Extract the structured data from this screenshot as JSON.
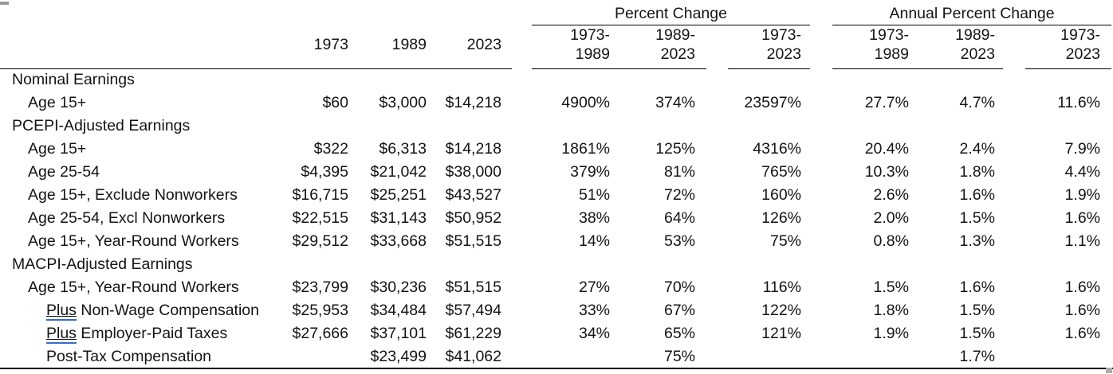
{
  "accents": {
    "rule_color": "#000000",
    "plus_underline_color": "#3a6bc9",
    "text_color": "#141414",
    "background_color": "#ffffff"
  },
  "chart_data": {
    "type": "table",
    "group_headers": [
      "Percent Change",
      "Annual Percent Change"
    ],
    "year_columns": [
      "1973",
      "1989",
      "2023"
    ],
    "change_columns": [
      {
        "line1": "1973-",
        "line2": "1989"
      },
      {
        "line1": "1989-",
        "line2": "2023"
      },
      {
        "line1": "1973-",
        "line2": "2023"
      }
    ],
    "rows": [
      {
        "label": "Nominal Earnings",
        "indent": 0,
        "section": true,
        "values": [
          "",
          "",
          "",
          "",
          "",
          "",
          "",
          "",
          ""
        ]
      },
      {
        "label": "Age 15+",
        "indent": 1,
        "section": false,
        "values": [
          "$60",
          "$3,000",
          "$14,218",
          "4900%",
          "374%",
          "23597%",
          "27.7%",
          "4.7%",
          "11.6%"
        ]
      },
      {
        "label": "PCEPI-Adjusted Earnings",
        "indent": 0,
        "section": true,
        "values": [
          "",
          "",
          "",
          "",
          "",
          "",
          "",
          "",
          ""
        ]
      },
      {
        "label": "Age 15+",
        "indent": 1,
        "section": false,
        "values": [
          "$322",
          "$6,313",
          "$14,218",
          "1861%",
          "125%",
          "4316%",
          "20.4%",
          "2.4%",
          "7.9%"
        ]
      },
      {
        "label": "Age 25-54",
        "indent": 1,
        "section": false,
        "values": [
          "$4,395",
          "$21,042",
          "$38,000",
          "379%",
          "81%",
          "765%",
          "10.3%",
          "1.8%",
          "4.4%"
        ]
      },
      {
        "label": "Age 15+, Exclude Nonworkers",
        "indent": 1,
        "section": false,
        "values": [
          "$16,715",
          "$25,251",
          "$43,527",
          "51%",
          "72%",
          "160%",
          "2.6%",
          "1.6%",
          "1.9%"
        ]
      },
      {
        "label": "Age 25-54, Excl Nonworkers",
        "indent": 1,
        "section": false,
        "values": [
          "$22,515",
          "$31,143",
          "$50,952",
          "38%",
          "64%",
          "126%",
          "2.0%",
          "1.5%",
          "1.6%"
        ]
      },
      {
        "label": "Age 15+, Year-Round Workers",
        "indent": 1,
        "section": false,
        "values": [
          "$29,512",
          "$33,668",
          "$51,515",
          "14%",
          "53%",
          "75%",
          "0.8%",
          "1.3%",
          "1.1%"
        ]
      },
      {
        "label": "MACPI-Adjusted Earnings",
        "indent": 0,
        "section": true,
        "values": [
          "",
          "",
          "",
          "",
          "",
          "",
          "",
          "",
          ""
        ]
      },
      {
        "label": "Age 15+, Year-Round Workers",
        "indent": 1,
        "section": false,
        "values": [
          "$23,799",
          "$30,236",
          "$51,515",
          "27%",
          "70%",
          "116%",
          "1.5%",
          "1.6%",
          "1.6%"
        ]
      },
      {
        "label_prefix": "Plus",
        "label": " Non-Wage Compensation",
        "indent": 2,
        "section": false,
        "values": [
          "$25,953",
          "$34,484",
          "$57,494",
          "33%",
          "67%",
          "122%",
          "1.8%",
          "1.5%",
          "1.6%"
        ]
      },
      {
        "label_prefix": "Plus",
        "label": " Employer-Paid Taxes",
        "indent": 2,
        "section": false,
        "values": [
          "$27,666",
          "$37,101",
          "$61,229",
          "34%",
          "65%",
          "121%",
          "1.9%",
          "1.5%",
          "1.6%"
        ]
      },
      {
        "label": "Post-Tax Compensation",
        "indent": 2,
        "section": false,
        "values": [
          "",
          "$23,499",
          "$41,062",
          "",
          "75%",
          "",
          "",
          "1.7%",
          ""
        ]
      }
    ]
  }
}
